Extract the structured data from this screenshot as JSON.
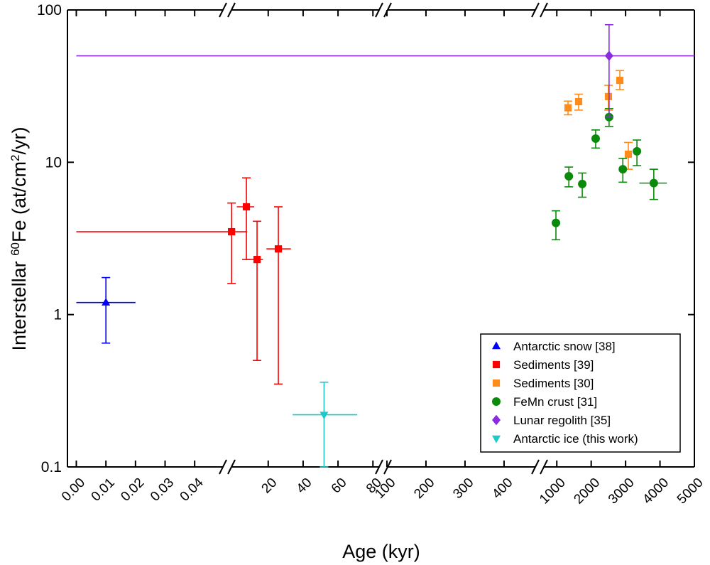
{
  "chart_data": {
    "type": "scatter",
    "x_label": "Age (kyr)",
    "y_label": [
      "Interstellar ",
      "60",
      "Fe (at/cm",
      "2",
      "/yr)"
    ],
    "y_scale": "log",
    "ylim": [
      0.1,
      100
    ],
    "yticks": [
      0.1,
      1,
      10,
      100
    ],
    "x_segments": [
      {
        "xlim": [
          -0.003,
          0.051
        ],
        "xticks": [
          {
            "value": 0,
            "label": "0.00"
          },
          {
            "value": 0.01,
            "label": "0.01"
          },
          {
            "value": 0.02,
            "label": "0.02"
          },
          {
            "value": 0.03,
            "label": "0.03"
          },
          {
            "value": 0.04,
            "label": "0.04"
          }
        ]
      },
      {
        "xlim": [
          -3.5,
          86
        ],
        "xticks": [
          20,
          40,
          60,
          80
        ]
      },
      {
        "xlim": [
          91,
          491
        ],
        "xticks": [
          100,
          200,
          300,
          400
        ]
      },
      {
        "xlim": [
          500,
          5000
        ],
        "xticks": [
          1000,
          2000,
          3000,
          4000,
          5000
        ]
      }
    ],
    "legend": "lower right",
    "series": [
      {
        "name": "Antarctic snow [38]",
        "color": "#0000ff",
        "marker": "triangle-up",
        "x": [
          0.01
        ],
        "y": [
          1.2
        ],
        "y_low": [
          0.65
        ],
        "y_high": [
          1.75
        ],
        "x_low": [
          0
        ],
        "x_high": [
          0.02
        ]
      },
      {
        "name": "Sediments [39]",
        "color": "#ff0000",
        "marker": "square",
        "x": [
          -1,
          7.5,
          13.6,
          25.8
        ],
        "y": [
          3.5,
          5.1,
          2.3,
          2.7
        ],
        "y_low": [
          1.6,
          2.3,
          0.5,
          0.35
        ],
        "y_high": [
          5.4,
          7.9,
          4.1,
          5.1
        ],
        "x_low": [
          0,
          2,
          7,
          19
        ],
        "x_high": [
          8,
          12,
          17,
          33
        ]
      },
      {
        "name": "Sediments [30]",
        "color": "#ff8c1a",
        "marker": "square",
        "x": [
          1326,
          1635,
          2502,
          2833,
          3080
        ],
        "y": [
          22.8,
          25,
          27,
          34.5,
          11.3
        ],
        "y_low": [
          20.5,
          22,
          22,
          30,
          9
        ],
        "y_high": [
          25.2,
          28,
          32,
          40,
          13.5
        ],
        "x_low": [
          null,
          null,
          null,
          null,
          null
        ],
        "x_high": [
          null,
          null,
          null,
          null,
          null
        ]
      },
      {
        "name": "FeMn crust [31]",
        "color": "#0a8a0a",
        "marker": "circle",
        "x": [
          975,
          1350,
          1740,
          2130,
          2520,
          2920,
          3330,
          3820
        ],
        "y": [
          4.0,
          8.1,
          7.2,
          14.3,
          19.8,
          9.0,
          11.8,
          7.3
        ],
        "y_low": [
          3.1,
          6.9,
          5.9,
          12.4,
          17.2,
          7.4,
          9.5,
          5.7
        ],
        "y_high": [
          4.8,
          9.3,
          8.5,
          16.3,
          22.5,
          10.6,
          14.0,
          9.0
        ],
        "x_low": [
          null,
          null,
          null,
          null,
          null,
          null,
          null,
          3400
        ],
        "x_high": [
          null,
          null,
          null,
          null,
          null,
          null,
          null,
          4200
        ]
      },
      {
        "name": "Lunar regolith [35]",
        "color": "#8a2be2",
        "marker": "diamond",
        "x": [
          2520
        ],
        "y": [
          50
        ],
        "y_low": [
          20
        ],
        "y_high": [
          80
        ],
        "x_low": [
          0
        ],
        "x_high": [
          5000
        ]
      },
      {
        "name": "Antarctic ice (this work)",
        "color": "#1fc8c8",
        "marker": "triangle-down",
        "x": [
          52
        ],
        "y": [
          0.22
        ],
        "y_low": [
          0.1
        ],
        "y_high": [
          0.36
        ],
        "x_low": [
          34
        ],
        "x_high": [
          71
        ]
      }
    ]
  }
}
